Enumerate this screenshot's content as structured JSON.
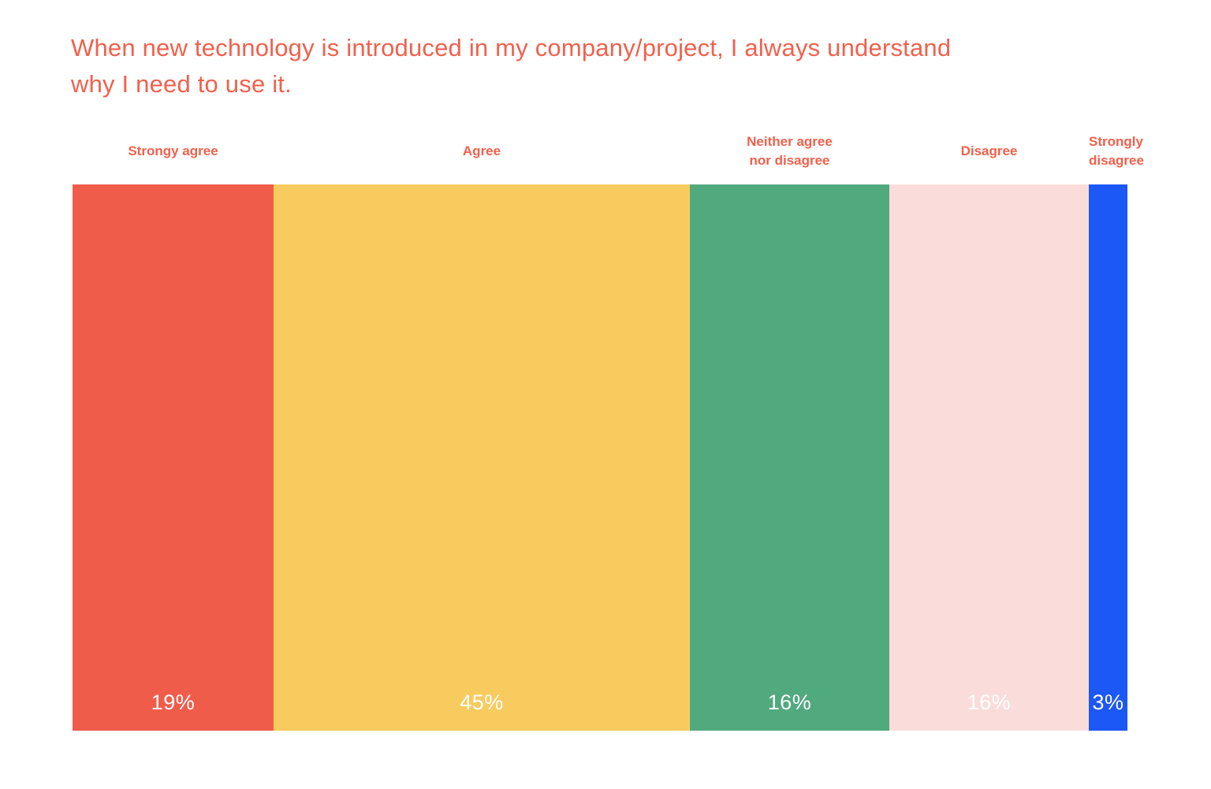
{
  "title": "When new technology is introduced in my company/project, I always understand why I need to use it.",
  "colors": {
    "background": "#FFFFFF",
    "title_text": "#F2604C",
    "category_label_text": "#F2604C",
    "value_label_text": "#FFFFFF"
  },
  "chart_data": {
    "type": "bar",
    "variant": "horizontal-100-percent-stacked",
    "title": "When new technology is introduced in my company/project, I always understand why I need to use it.",
    "title_lines": [
      "When new technology is introduced in my company/project, I always understand",
      "why I need to use it."
    ],
    "categories": [
      "Strongy agree",
      "Agree",
      "Neither agree nor disagree",
      "Disagree",
      "Strongly disagree"
    ],
    "category_label_lines": [
      [
        "Strongy agree"
      ],
      [
        "Agree"
      ],
      [
        "Neither agree",
        "nor disagree"
      ],
      [
        "Disagree"
      ],
      [
        "Strongly",
        "disagree"
      ]
    ],
    "values": [
      19,
      45,
      16,
      16,
      3
    ],
    "unit": "%",
    "value_labels": [
      "19%",
      "45%",
      "16%",
      "16%",
      "3%"
    ],
    "segment_colors": [
      "#F05C4A",
      "#F8CB5F",
      "#51A97E",
      "#FADDDA",
      "#1C58F6"
    ],
    "display_widths_pct": [
      19.06,
      39.46,
      18.91,
      18.91,
      3.66
    ],
    "legend_position": "top",
    "grid": false,
    "axis_labels_shown": false
  }
}
